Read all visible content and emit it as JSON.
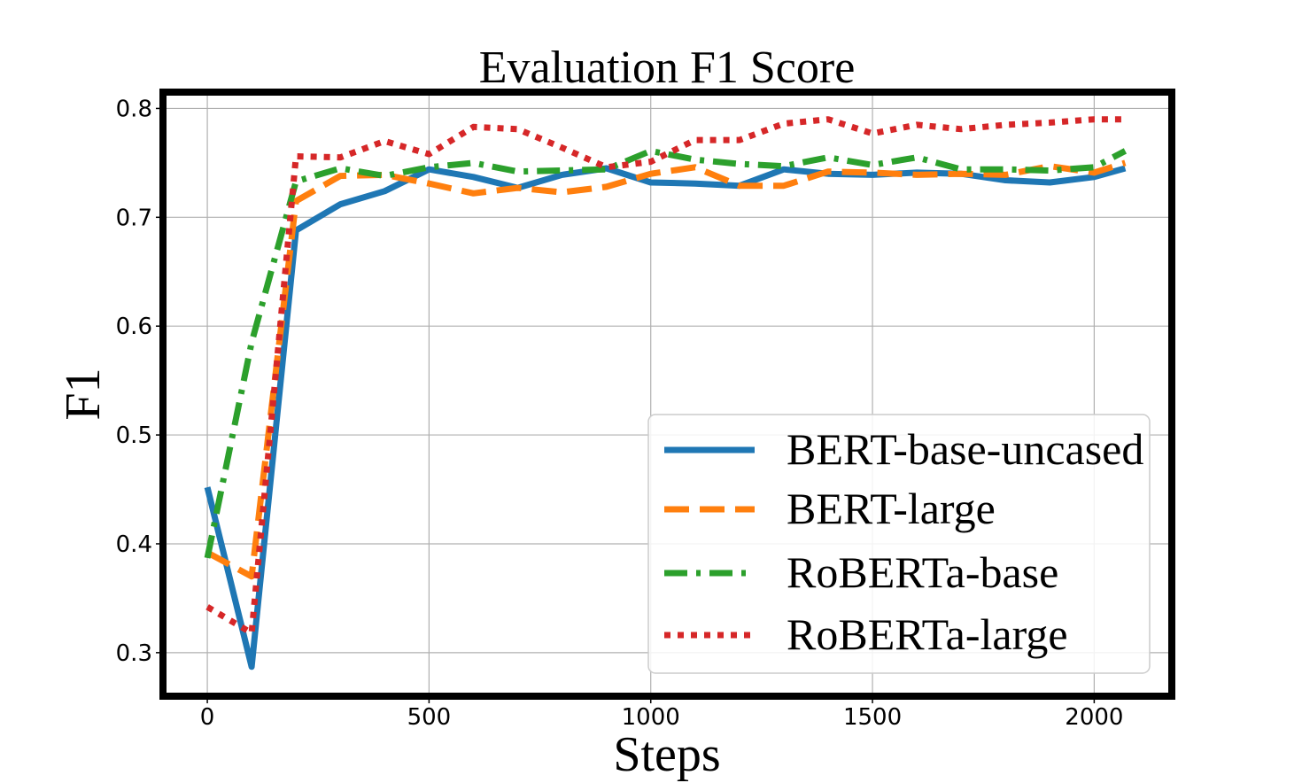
{
  "chart_data": {
    "type": "line",
    "title": "Evaluation F1 Score",
    "xlabel": "Steps",
    "ylabel": "F1",
    "xlim": [
      -100,
      2175
    ],
    "ylim": [
      0.26,
      0.815
    ],
    "xticks": [
      0,
      500,
      1000,
      1500,
      2000
    ],
    "yticks": [
      0.3,
      0.4,
      0.5,
      0.6,
      0.7,
      0.8
    ],
    "xtick_labels": [
      "0",
      "500",
      "1000",
      "1500",
      "2000"
    ],
    "ytick_labels": [
      "0.3",
      "0.4",
      "0.5",
      "0.6",
      "0.7",
      "0.8"
    ],
    "grid": true,
    "legend_position": "lower-right",
    "x": [
      0,
      100,
      200,
      300,
      400,
      500,
      600,
      700,
      800,
      900,
      1000,
      1100,
      1200,
      1300,
      1400,
      1500,
      1600,
      1700,
      1800,
      1900,
      2000,
      2070
    ],
    "series": [
      {
        "name": "BERT-base-uncased",
        "color": "#1f77b4",
        "linestyle": "solid",
        "values": [
          0.452,
          0.287,
          0.688,
          0.712,
          0.724,
          0.744,
          0.737,
          0.727,
          0.739,
          0.745,
          0.732,
          0.731,
          0.729,
          0.744,
          0.74,
          0.739,
          0.741,
          0.74,
          0.734,
          0.732,
          0.737,
          0.745
        ]
      },
      {
        "name": "BERT-large",
        "color": "#ff7f0e",
        "linestyle": "dashed",
        "values": [
          0.392,
          0.37,
          0.715,
          0.738,
          0.739,
          0.731,
          0.722,
          0.727,
          0.723,
          0.728,
          0.74,
          0.746,
          0.729,
          0.729,
          0.742,
          0.741,
          0.739,
          0.74,
          0.739,
          0.747,
          0.741,
          0.75
        ]
      },
      {
        "name": "RoBERTa-base",
        "color": "#2ca02c",
        "linestyle": "dashdot",
        "values": [
          0.387,
          0.585,
          0.733,
          0.745,
          0.738,
          0.746,
          0.75,
          0.742,
          0.743,
          0.744,
          0.761,
          0.753,
          0.749,
          0.747,
          0.755,
          0.748,
          0.755,
          0.744,
          0.744,
          0.743,
          0.746,
          0.761
        ]
      },
      {
        "name": "RoBERTa-large",
        "color": "#d62728",
        "linestyle": "dotted",
        "values": [
          0.342,
          0.318,
          0.756,
          0.755,
          0.77,
          0.758,
          0.783,
          0.781,
          0.764,
          0.746,
          0.751,
          0.771,
          0.771,
          0.786,
          0.79,
          0.777,
          0.785,
          0.781,
          0.785,
          0.787,
          0.79,
          0.79
        ]
      }
    ]
  }
}
